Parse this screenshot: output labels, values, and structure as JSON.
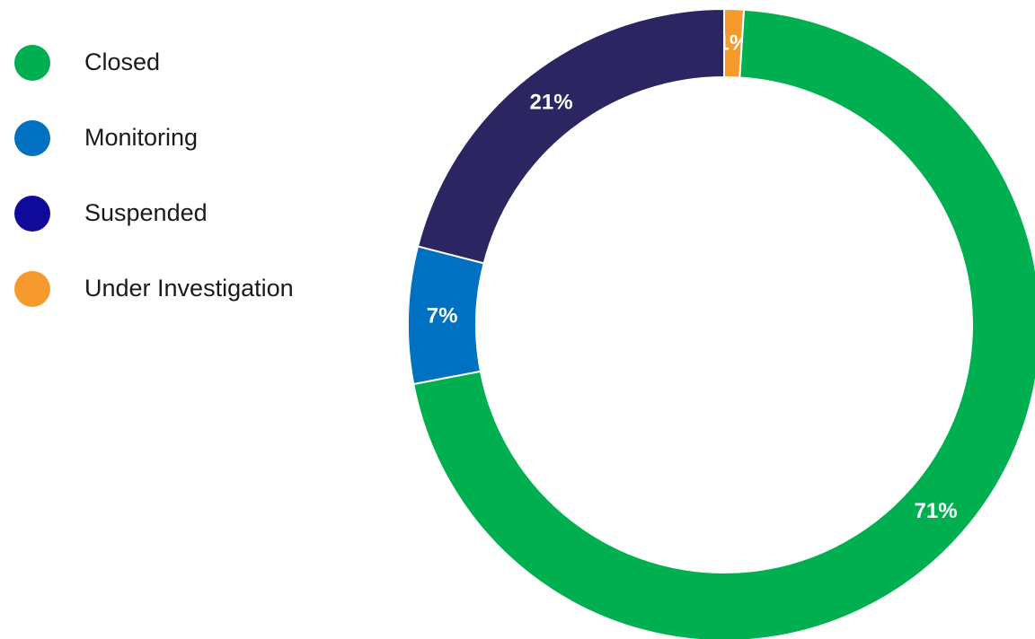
{
  "chart_data": {
    "type": "pie",
    "variant": "donut",
    "categories": [
      "Closed",
      "Monitoring",
      "Suspended",
      "Under Investigation"
    ],
    "values": [
      71,
      7,
      21,
      1
    ],
    "data_labels": [
      "71%",
      "7%",
      "21%",
      "1%"
    ],
    "colors": [
      "#00b050",
      "#0070c0",
      "#2b2561",
      "#f79a2e"
    ],
    "legend_colors": [
      "#00b050",
      "#0070c0",
      "#0f0a99",
      "#f79a2e"
    ],
    "legend_position": "left",
    "start_angle": "12 o'clock",
    "direction": "clockwise"
  }
}
